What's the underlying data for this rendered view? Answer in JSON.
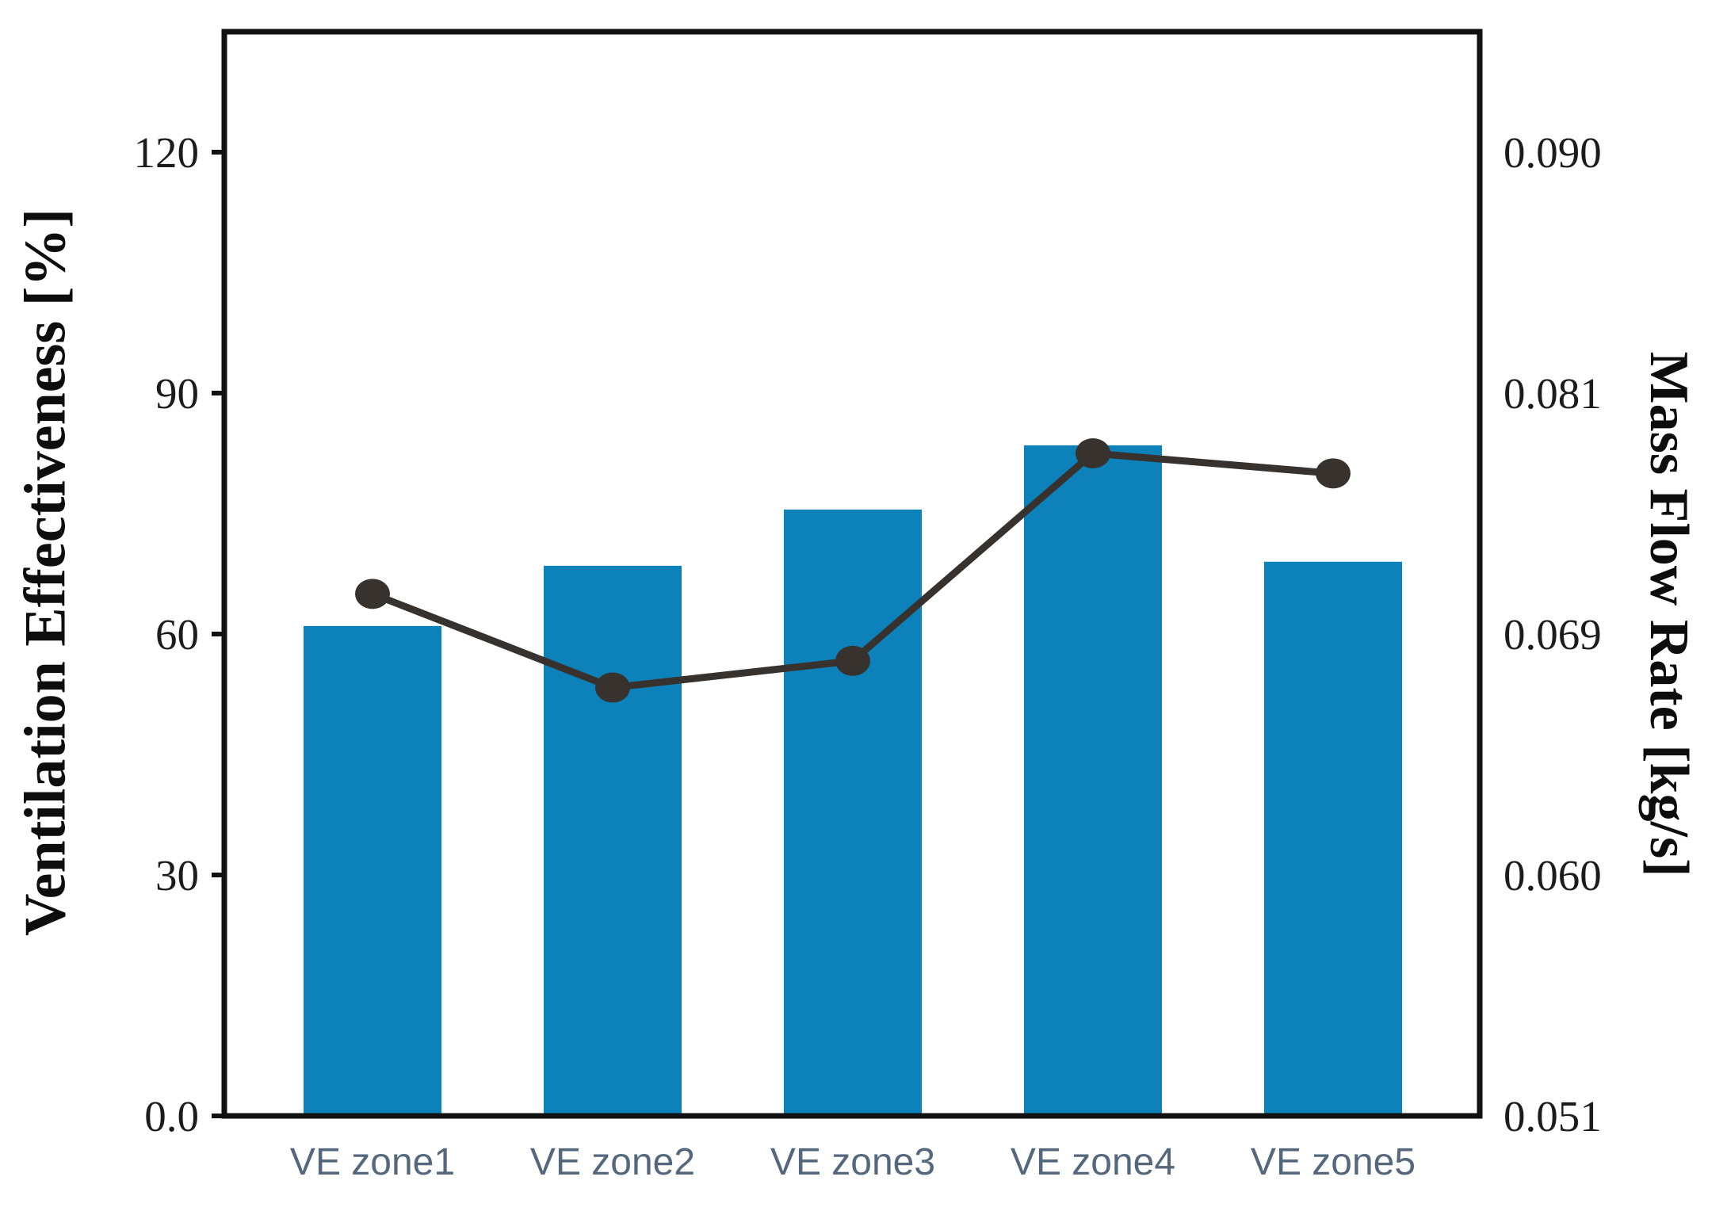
{
  "figure": {
    "background": "#ffffff",
    "frame_color": "#111111"
  },
  "chart_data": {
    "type": "bar",
    "subtype": "bar-and-line-combo",
    "categories": [
      "VE zone1",
      "VE zone2",
      "VE zone3",
      "VE zone4",
      "VE zone5"
    ],
    "series": [
      {
        "name": "Ventilation Effectiveness",
        "type": "bar",
        "axis": "left",
        "values": [
          61,
          68.5,
          75.5,
          83.5,
          69
        ],
        "color": "#0c81ba"
      },
      {
        "name": "Mass Flow Rate",
        "type": "line",
        "axis": "right",
        "values": [
          0.071,
          0.067,
          0.068,
          0.078,
          0.077
        ],
        "color": "#38322f",
        "marker": "circle"
      }
    ],
    "left_axis": {
      "label": "Ventilation Effectiveness [%]",
      "tick_labels": [
        "0.0",
        "30",
        "60",
        "90",
        "120"
      ],
      "tick_values": [
        0,
        30,
        60,
        90,
        120
      ],
      "range": [
        0,
        135
      ]
    },
    "right_axis": {
      "label": "Mass Flow Rate [kg/s]",
      "tick_labels": [
        "0.051",
        "0.060",
        "0.069",
        "0.081",
        "0.090"
      ],
      "tick_values": [
        0.051,
        0.06,
        0.069,
        0.081,
        0.09
      ]
    },
    "x_axis": {
      "tick_label_color": "#55677d"
    },
    "legend": "none",
    "grid": false
  }
}
